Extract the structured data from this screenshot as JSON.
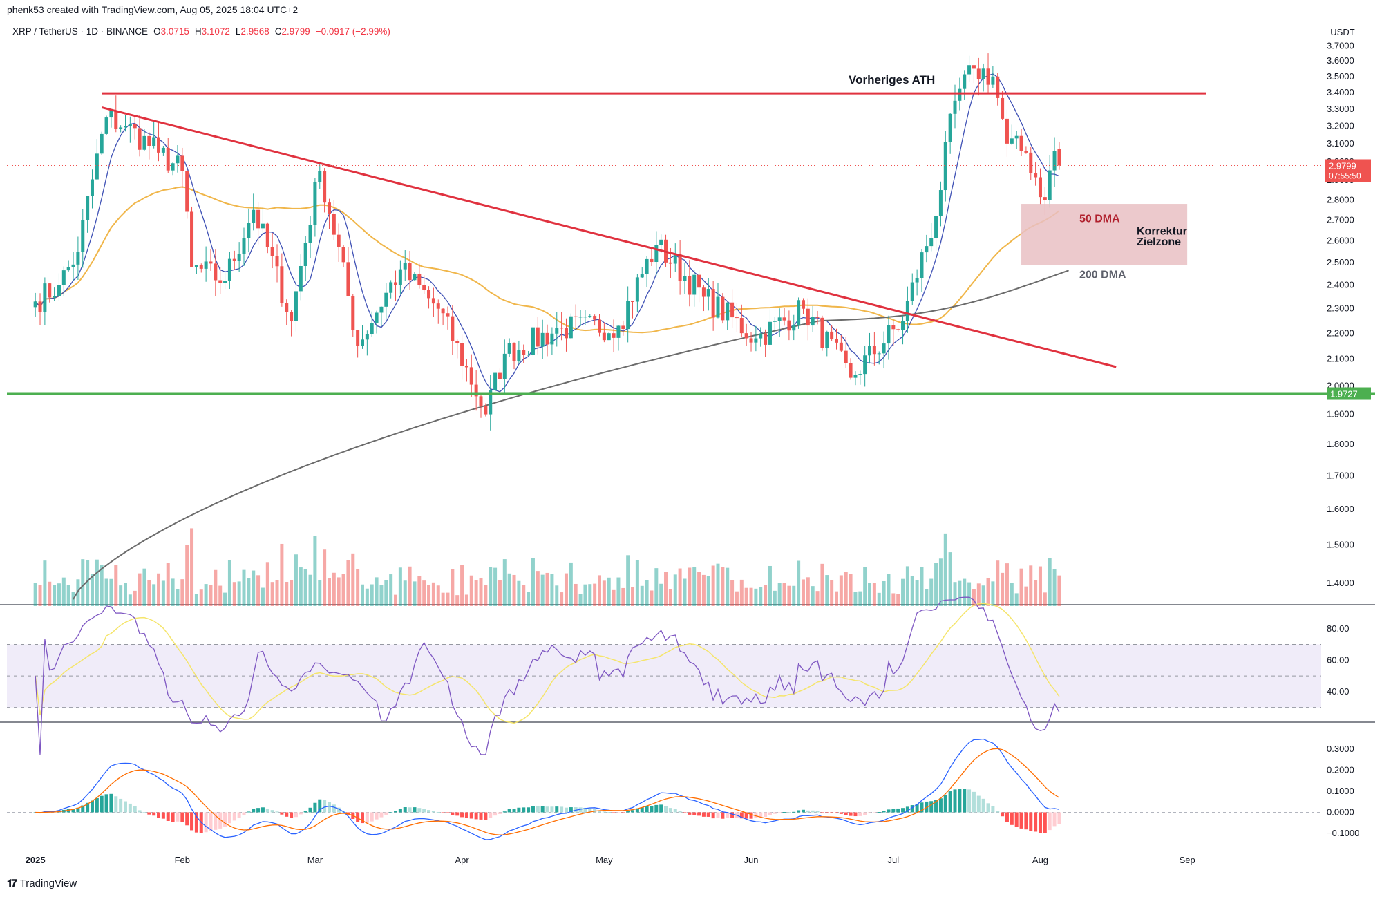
{
  "header": {
    "credit": "phenk53 created with TradingView.com, Aug 05, 2025 18:04 UTC+2",
    "symbol": "XRP / TetherUS · 1D · BINANCE",
    "open_label": "O",
    "open": "3.0715",
    "high_label": "H",
    "high": "3.1072",
    "low_label": "L",
    "low": "2.9568",
    "close_label": "C",
    "close": "2.9799",
    "change": "−0.0917 (−2.99%)"
  },
  "currency_button": "USDT",
  "footer": {
    "logo_mark": "𝟏𝟕",
    "logo_name": "TradingView"
  },
  "colors": {
    "up": "#26a69a",
    "down": "#ef5350",
    "resistance": "#e0323f",
    "support": "#4caf50",
    "ema_short": "#3f51b5",
    "ma50": "#f0b64a",
    "ma200": "#6b6b6b",
    "zone": "#e9c0c3",
    "rsi": "#7e57c2",
    "rsi_ma": "#f5e56b",
    "macd": "#2962ff",
    "signal": "#ff6d00"
  },
  "chart_data": [
    {
      "type": "candlestick",
      "title": "XRP / TetherUS · 1D · BINANCE",
      "y_unit": "USDT",
      "ylim": [
        1.35,
        3.72
      ],
      "y_ticks": [
        "3.7000",
        "3.6000",
        "3.5000",
        "3.4000",
        "3.3000",
        "3.2000",
        "3.1000",
        "3.0000",
        "2.9000",
        "2.8000",
        "2.7000",
        "2.6000",
        "2.5000",
        "2.4000",
        "2.3000",
        "2.2000",
        "2.1000",
        "2.0000",
        "1.9000",
        "1.8000",
        "1.7000",
        "1.6000",
        "1.5000",
        "1.4000"
      ],
      "x_ticks": [
        "2025",
        "Feb",
        "Mar",
        "Apr",
        "May",
        "Jun",
        "Jul",
        "Aug",
        "Sep"
      ],
      "last_price_label": "2.9799",
      "countdown_label": "07:55:50",
      "support_label": "1.9727",
      "support_price": 1.9727,
      "previous_ath_price": 3.395,
      "annotations": {
        "ath": "Vorheriges ATH",
        "ma50": "50 DMA",
        "zone": "Korrektur Zielzone",
        "ma200": "200 DMA"
      },
      "zone": {
        "from_price": 2.49,
        "to_price": 2.78,
        "from_date": "2025-07-28",
        "to_date": "2025-09-01"
      },
      "trendline": {
        "start_date": "2025-01-15",
        "start_price": 3.31,
        "end_date": "2025-08-17",
        "end_price": 2.07
      },
      "key_points": [
        {
          "date": "2025-01-01",
          "close": 2.33
        },
        {
          "date": "2025-01-06",
          "close": 2.4
        },
        {
          "date": "2025-01-10",
          "close": 2.55
        },
        {
          "date": "2025-01-16",
          "close": 3.25
        },
        {
          "date": "2025-01-20",
          "close": 3.2
        },
        {
          "date": "2025-01-27",
          "close": 3.05
        },
        {
          "date": "2025-02-01",
          "close": 2.95
        },
        {
          "date": "2025-02-03",
          "close": 2.48
        },
        {
          "date": "2025-02-10",
          "close": 2.42
        },
        {
          "date": "2025-02-16",
          "close": 2.75
        },
        {
          "date": "2025-02-24",
          "close": 2.25
        },
        {
          "date": "2025-03-02",
          "close": 2.95
        },
        {
          "date": "2025-03-10",
          "close": 2.15
        },
        {
          "date": "2025-03-19",
          "close": 2.47
        },
        {
          "date": "2025-03-27",
          "close": 2.3
        },
        {
          "date": "2025-04-06",
          "close": 1.9
        },
        {
          "date": "2025-04-10",
          "close": 2.12
        },
        {
          "date": "2025-04-22",
          "close": 2.22
        },
        {
          "date": "2025-05-04",
          "close": 2.23
        },
        {
          "date": "2025-05-12",
          "close": 2.58
        },
        {
          "date": "2025-05-22",
          "close": 2.35
        },
        {
          "date": "2025-06-02",
          "close": 2.18
        },
        {
          "date": "2025-06-12",
          "close": 2.3
        },
        {
          "date": "2025-06-22",
          "close": 2.03
        },
        {
          "date": "2025-07-03",
          "close": 2.25
        },
        {
          "date": "2025-07-10",
          "close": 2.72
        },
        {
          "date": "2025-07-14",
          "close": 3.35
        },
        {
          "date": "2025-07-18",
          "close": 3.55
        },
        {
          "date": "2025-07-22",
          "close": 3.5
        },
        {
          "date": "2025-07-25",
          "close": 3.1
        },
        {
          "date": "2025-07-29",
          "close": 3.05
        },
        {
          "date": "2025-08-02",
          "close": 2.8
        },
        {
          "date": "2025-08-04",
          "close": 3.06
        },
        {
          "date": "2025-08-05",
          "close": 2.9799
        }
      ]
    },
    {
      "type": "line",
      "title": "",
      "y_ticks": [
        "80.00",
        "60.00",
        "40.00"
      ],
      "bands": [
        30,
        50,
        70
      ]
    },
    {
      "type": "bar",
      "title": "",
      "y_ticks": [
        "0.3000",
        "0.2000",
        "0.1000",
        "0.0000",
        "−0.1000"
      ]
    }
  ]
}
